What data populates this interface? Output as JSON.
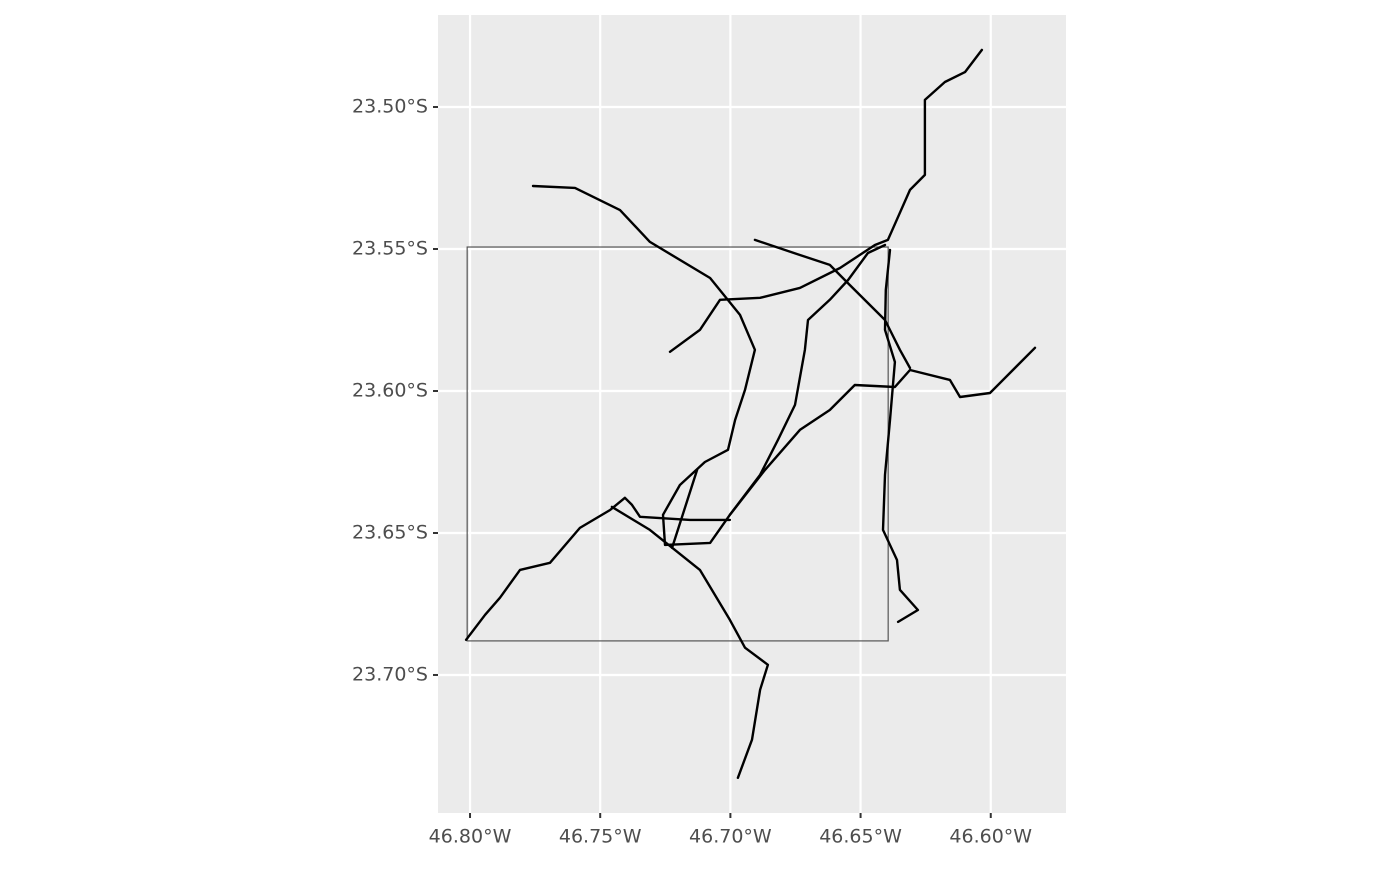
{
  "chart_data": {
    "type": "map",
    "xlim": [
      -46.8123,
      -46.5711
    ],
    "ylim": [
      -23.7486,
      -23.4676
    ],
    "xticks": [
      {
        "value": -46.8,
        "label": "46.80°W"
      },
      {
        "value": -46.75,
        "label": "46.75°W"
      },
      {
        "value": -46.7,
        "label": "46.70°W"
      },
      {
        "value": -46.65,
        "label": "46.65°W"
      },
      {
        "value": -46.6,
        "label": "46.60°W"
      }
    ],
    "yticks": [
      {
        "value": -23.5,
        "label": "23.50°S"
      },
      {
        "value": -23.55,
        "label": "23.55°S"
      },
      {
        "value": -23.6,
        "label": "23.60°S"
      },
      {
        "value": -23.65,
        "label": "23.65°S"
      },
      {
        "value": -23.7,
        "label": "23.70°S"
      }
    ],
    "grid": true,
    "background": "#ebebeb",
    "grid_color": "#ffffff",
    "bbox": {
      "xmin": -46.8011,
      "xmax": -46.6394,
      "ymin": -23.688,
      "ymax": -23.5493,
      "color": "#555555"
    },
    "series": [
      {
        "color": "#000000",
        "x": [
          -46.7758,
          -46.7597,
          -46.7424,
          -46.7309,
          -46.7078,
          -46.6963,
          -46.6906,
          -46.6944,
          -46.6982,
          -46.7009,
          -46.7098,
          -46.7194,
          -46.7259,
          -46.7251,
          -46.7078,
          -46.7002,
          -46.6867,
          -46.6733,
          -46.6618,
          -46.6522,
          -46.6368,
          -46.631,
          -46.6157,
          -46.6118,
          -46.6003,
          -46.583
        ],
        "y": [
          -23.5278,
          -23.5285,
          -23.5363,
          -23.5475,
          -23.5602,
          -23.5732,
          -23.5855,
          -23.5996,
          -23.6102,
          -23.6207,
          -23.625,
          -23.6331,
          -23.6436,
          -23.6542,
          -23.6535,
          -23.6436,
          -23.6278,
          -23.6137,
          -23.6067,
          -23.5979,
          -23.5986,
          -23.5926,
          -23.5961,
          -23.6021,
          -23.6007,
          -23.5848
        ]
      },
      {
        "color": "#000000",
        "x": [
          -46.7232,
          -46.7117,
          -46.704,
          -46.6886,
          -46.6733,
          -46.6579,
          -46.6445,
          -46.6395,
          -46.631,
          -46.6253,
          -46.6253,
          -46.6176,
          -46.6099,
          -46.6034
        ],
        "y": [
          -23.5862,
          -23.5785,
          -23.5679,
          -23.5672,
          -23.5637,
          -23.5567,
          -23.5486,
          -23.5468,
          -23.5292,
          -23.5239,
          -23.4975,
          -23.4912,
          -23.4877,
          -23.4799
        ]
      },
      {
        "color": "#000000",
        "x": [
          -46.6906,
          -46.6733,
          -46.6618,
          -46.6541,
          -46.6406,
          -46.6349,
          -46.631
        ],
        "y": [
          -23.5468,
          -23.5521,
          -23.5556,
          -23.5627,
          -23.575,
          -23.5855,
          -23.5919
        ]
      },
      {
        "color": "#000000",
        "x": [
          -46.8015,
          -46.7942,
          -46.7885,
          -46.7808,
          -46.7693,
          -46.7578,
          -46.7462,
          -46.7405,
          -46.7378,
          -46.7347,
          -46.7155,
          -46.7002
        ],
        "y": [
          -23.6876,
          -23.6788,
          -23.6728,
          -23.663,
          -23.6605,
          -23.6482,
          -23.6419,
          -23.6376,
          -23.6401,
          -23.6443,
          -23.6454,
          -23.6454
        ]
      },
      {
        "color": "#000000",
        "x": [
          -46.7455,
          -46.7309,
          -46.7117,
          -46.7002,
          -46.6944,
          -46.6856,
          -46.6886,
          -46.6917,
          -46.6971
        ],
        "y": [
          -23.6408,
          -23.6489,
          -23.663,
          -23.6806,
          -23.6904,
          -23.6964,
          -23.7052,
          -23.7228,
          -23.7362
        ]
      },
      {
        "color": "#000000",
        "x": [
          -46.7224,
          -46.7128
        ],
        "y": [
          -23.6552,
          -23.6278
        ]
      },
      {
        "color": "#000000",
        "x": [
          -46.7002,
          -46.6886,
          -46.6817,
          -46.6752,
          -46.6714,
          -46.6702,
          -46.6618,
          -46.6548,
          -46.6472,
          -46.6406
        ],
        "y": [
          -23.6436,
          -23.6295,
          -23.6172,
          -23.6049,
          -23.5855,
          -23.575,
          -23.5679,
          -23.5609,
          -23.5514,
          -23.5486
        ]
      },
      {
        "color": "#000000",
        "x": [
          -46.6387,
          -46.6403,
          -46.6406,
          -46.6368,
          -46.6387,
          -46.6406,
          -46.6414,
          -46.636,
          -46.6349,
          -46.628,
          -46.6356
        ],
        "y": [
          -23.5503,
          -23.5644,
          -23.5785,
          -23.5898,
          -23.6102,
          -23.6295,
          -23.6489,
          -23.6595,
          -23.67,
          -23.6771,
          -23.6813
        ]
      }
    ]
  }
}
